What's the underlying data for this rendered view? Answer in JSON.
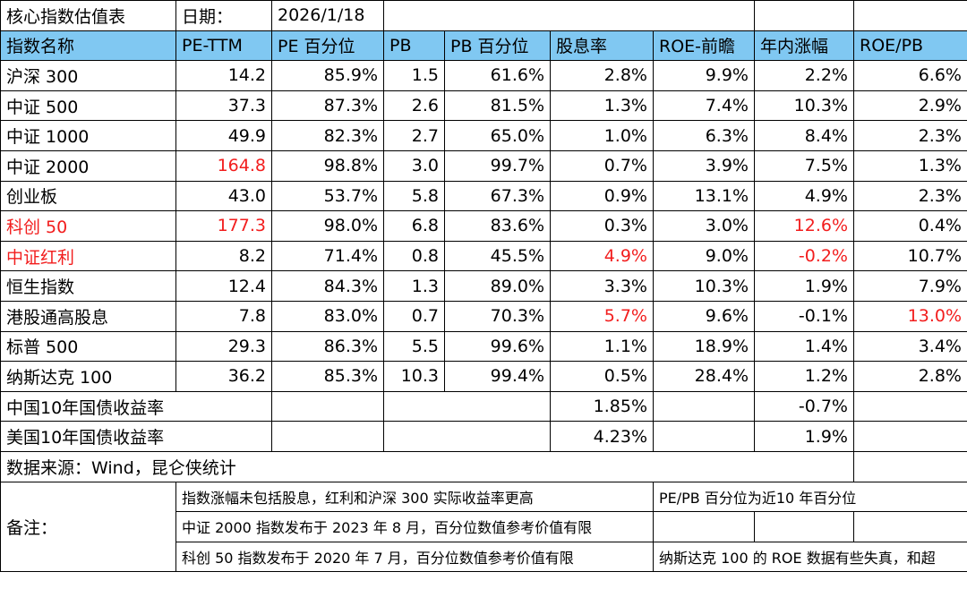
{
  "header": {
    "title": "核心指数估值表",
    "date_label": "日期：",
    "date": "2026/1/18"
  },
  "table": {
    "header_color": "#80c8f2",
    "columns": [
      "指数名称",
      "PE-TTM",
      "PE 百分位",
      "PB",
      "PB 百分位",
      "股息率",
      "ROE-前瞻",
      "年内涨幅",
      "ROE/PB"
    ],
    "rows": [
      [
        "沪深 300",
        "14.2",
        "85.9%",
        "1.5",
        "61.6%",
        "2.8%",
        "9.9%",
        "2.2%",
        "6.6%"
      ],
      [
        "中证 500",
        "37.3",
        "87.3%",
        "2.6",
        "81.5%",
        "1.3%",
        "7.4%",
        "10.3%",
        "2.9%"
      ],
      [
        "中证 1000",
        "49.9",
        "82.3%",
        "2.7",
        "65.0%",
        "1.0%",
        "6.3%",
        "8.4%",
        "2.3%"
      ],
      [
        "中证 2000",
        {
          "text": "164.8",
          "color": "#f21d1d"
        },
        "98.8%",
        "3.0",
        "99.7%",
        "0.7%",
        "3.9%",
        "7.5%",
        "1.3%"
      ],
      [
        "创业板",
        "43.0",
        "53.7%",
        "5.8",
        "67.3%",
        "0.9%",
        "13.1%",
        "4.9%",
        "2.3%"
      ],
      [
        {
          "text": "科创 50",
          "color": "#f21d1d"
        },
        {
          "text": "177.3",
          "color": "#f21d1d"
        },
        "98.0%",
        "6.8",
        "83.6%",
        "0.3%",
        "3.0%",
        {
          "text": "12.6%",
          "color": "#f21d1d"
        },
        "0.4%"
      ],
      [
        {
          "text": "中证红利",
          "color": "#f21d1d"
        },
        "8.2",
        "71.4%",
        "0.8",
        "45.5%",
        {
          "text": "4.9%",
          "color": "#f21d1d"
        },
        "9.0%",
        {
          "text": "-0.2%",
          "color": "#f21d1d"
        },
        "10.7%"
      ],
      [
        "恒生指数",
        "12.4",
        "84.3%",
        "1.3",
        "89.0%",
        "3.3%",
        "10.3%",
        "1.9%",
        "7.9%"
      ],
      [
        "港股通高股息",
        "7.8",
        "83.0%",
        "0.7",
        "70.3%",
        {
          "text": "5.7%",
          "color": "#f21d1d"
        },
        "9.6%",
        "-0.1%",
        {
          "text": "13.0%",
          "color": "#f21d1d"
        }
      ],
      [
        "标普 500",
        "29.3",
        "86.3%",
        "5.5",
        "99.6%",
        "1.1%",
        "18.9%",
        "1.4%",
        "3.4%"
      ],
      [
        "纳斯达克 100",
        "36.2",
        "85.3%",
        "10.3",
        "99.4%",
        "0.5%",
        "28.4%",
        "1.2%",
        "2.8%"
      ]
    ]
  },
  "yields": [
    {
      "name": "中国10年国债收益率",
      "dividend_yield": "1.85%",
      "ytd_change": "-0.7%"
    },
    {
      "name": "美国10年国债收益率",
      "dividend_yield": "4.23%",
      "ytd_change": "1.9%"
    }
  ],
  "source": "数据来源：Wind，昆仑侠统计",
  "notes": {
    "label": "备注：",
    "items": [
      "指数涨幅未包括股息，红利和沪深 300 实际收益率更高",
      "PE/PB 百分位为近10 年百分位",
      "中证 2000 指数发布于 2023 年 8 月，百分位数值参考价值有限",
      "科创 50 指数发布于 2020 年 7 月，百分位数值参考价值有限",
      "纳斯达克 100 的 ROE 数据有些失真，和超"
    ]
  }
}
